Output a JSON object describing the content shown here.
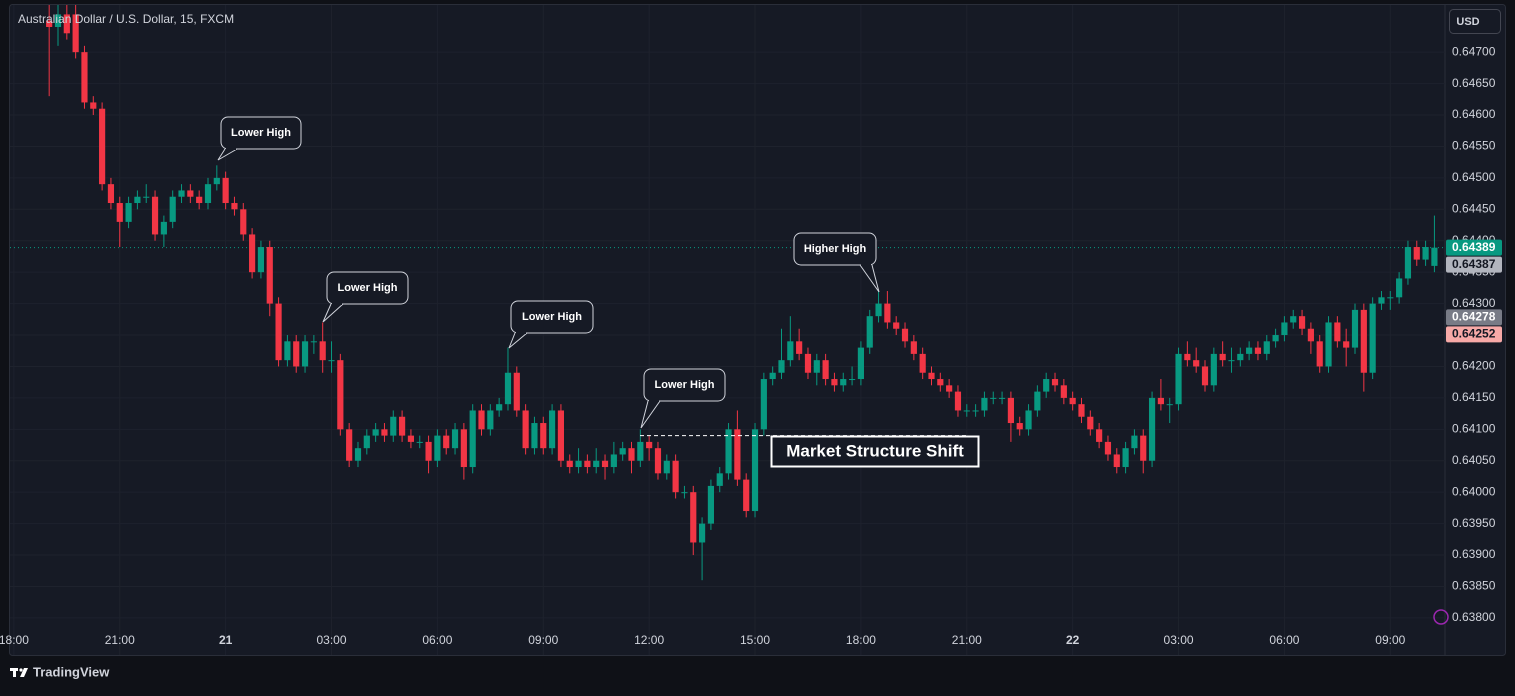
{
  "chart_data": {
    "type": "candlestick",
    "title": "Australian Dollar / U.S. Dollar, 15, FXCM",
    "currency_button": "USD",
    "branding": "TradingView",
    "up_color": "#089981",
    "down_color": "#f23645",
    "grid": true,
    "xlim": [
      -0.11,
      40.55
    ],
    "ylim": [
      0.63741,
      0.64775
    ],
    "xticks": [
      {
        "value": 0,
        "label": "18:00"
      },
      {
        "value": 3,
        "label": "21:00"
      },
      {
        "value": 6,
        "label": "21"
      },
      {
        "value": 9,
        "label": "03:00"
      },
      {
        "value": 12,
        "label": "06:00"
      },
      {
        "value": 15,
        "label": "09:00"
      },
      {
        "value": 18,
        "label": "12:00"
      },
      {
        "value": 21,
        "label": "15:00"
      },
      {
        "value": 24,
        "label": "18:00"
      },
      {
        "value": 27,
        "label": "21:00"
      },
      {
        "value": 30,
        "label": "22"
      },
      {
        "value": 33,
        "label": "03:00"
      },
      {
        "value": 36,
        "label": "06:00"
      },
      {
        "value": 39,
        "label": "09:00"
      }
    ],
    "yticks": [
      {
        "value": 0.638,
        "label": "0.63800"
      },
      {
        "value": 0.6385,
        "label": "0.63850"
      },
      {
        "value": 0.639,
        "label": "0.63900"
      },
      {
        "value": 0.6395,
        "label": "0.63950"
      },
      {
        "value": 0.64,
        "label": "0.64000"
      },
      {
        "value": 0.6405,
        "label": "0.64050"
      },
      {
        "value": 0.641,
        "label": "0.64100"
      },
      {
        "value": 0.6415,
        "label": "0.64150"
      },
      {
        "value": 0.642,
        "label": "0.64200"
      },
      {
        "value": 0.6425,
        "label": "0.64250"
      },
      {
        "value": 0.643,
        "label": "0.64300"
      },
      {
        "value": 0.6435,
        "label": "0.64350"
      },
      {
        "value": 0.644,
        "label": "0.64400"
      },
      {
        "value": 0.6445,
        "label": "0.64450"
      },
      {
        "value": 0.645,
        "label": "0.64500"
      },
      {
        "value": 0.6455,
        "label": "0.64550"
      },
      {
        "value": 0.646,
        "label": "0.64600"
      },
      {
        "value": 0.6465,
        "label": "0.64650"
      },
      {
        "value": 0.647,
        "label": "0.64700"
      }
    ],
    "price_labels": [
      {
        "value": 0.64389,
        "color": "#089981",
        "text_color": "#ffffff"
      },
      {
        "value": 0.64387,
        "color": "#b2b5be",
        "text_color": "#131722"
      },
      {
        "value": 0.64278,
        "color": "#787b86",
        "text_color": "#ffffff"
      },
      {
        "value": 0.64252,
        "color": "#f7a9a7",
        "text_color": "#131722"
      }
    ],
    "structure_level": 0.6409,
    "annotations": [
      "Lower High",
      "Lower High",
      "Lower High",
      "Lower High",
      "Higher High",
      "Market Structure Shift"
    ],
    "x": [
      1,
      1.25,
      1.5,
      1.75,
      2,
      2.25,
      2.5,
      2.75,
      3,
      3.25,
      3.5,
      3.75,
      4,
      4.25,
      4.5,
      4.75,
      5,
      5.25,
      5.5,
      5.75,
      6,
      6.25,
      6.5,
      6.75,
      7,
      7.25,
      7.5,
      7.75,
      8,
      8.25,
      8.5,
      8.75,
      9,
      9.25,
      9.5,
      9.75,
      10,
      10.25,
      10.5,
      10.75,
      11,
      11.25,
      11.5,
      11.75,
      12,
      12.25,
      12.5,
      12.75,
      13,
      13.25,
      13.5,
      13.75,
      14,
      14.25,
      14.5,
      14.75,
      15,
      15.25,
      15.5,
      15.75,
      16,
      16.25,
      16.5,
      16.75,
      17,
      17.25,
      17.5,
      17.75,
      18,
      18.25,
      18.5,
      18.75,
      19,
      19.25,
      19.5,
      19.75,
      20,
      20.25,
      20.5,
      20.75,
      21,
      21.25,
      21.5,
      21.75,
      22,
      22.25,
      22.5,
      22.75,
      23,
      23.25,
      23.5,
      23.75,
      24,
      24.25,
      24.5,
      24.75,
      25,
      25.25,
      25.5,
      25.75,
      26,
      26.25,
      26.5,
      26.75,
      27,
      27.25,
      27.5,
      27.75,
      28,
      28.25,
      28.5,
      28.75,
      29,
      29.25,
      29.5,
      29.75,
      30,
      30.25,
      30.5,
      30.75,
      31,
      31.25,
      31.5,
      31.75,
      32,
      32.25,
      32.5,
      32.75,
      33,
      33.25,
      33.5,
      33.75,
      34,
      34.25,
      34.5,
      34.75,
      35,
      35.25,
      35.5,
      35.75,
      36,
      36.25,
      36.5,
      36.75,
      37,
      37.25,
      37.5,
      37.75,
      38,
      38.25,
      38.5,
      38.75,
      39,
      39.25,
      39.5,
      39.75,
      40,
      40.25
    ],
    "candles": [
      [
        0.6475,
        0.6478,
        0.6463,
        0.6474
      ],
      [
        0.6474,
        0.6478,
        0.6471,
        0.6476
      ],
      [
        0.6476,
        0.6478,
        0.6472,
        0.6473
      ],
      [
        0.6476,
        0.6478,
        0.6469,
        0.647
      ],
      [
        0.647,
        0.6471,
        0.6461,
        0.6462
      ],
      [
        0.6462,
        0.6463,
        0.646,
        0.6461
      ],
      [
        0.6461,
        0.6462,
        0.6448,
        0.6449
      ],
      [
        0.6449,
        0.645,
        0.6445,
        0.6446
      ],
      [
        0.6446,
        0.6447,
        0.6439,
        0.6443
      ],
      [
        0.6443,
        0.6447,
        0.6442,
        0.6446
      ],
      [
        0.6446,
        0.6448,
        0.6445,
        0.6447
      ],
      [
        0.6447,
        0.6449,
        0.6446,
        0.6447
      ],
      [
        0.6447,
        0.6448,
        0.644,
        0.6441
      ],
      [
        0.6441,
        0.6444,
        0.6439,
        0.6443
      ],
      [
        0.6443,
        0.6448,
        0.6442,
        0.6447
      ],
      [
        0.6447,
        0.6449,
        0.6446,
        0.6448
      ],
      [
        0.6448,
        0.6449,
        0.6446,
        0.6447
      ],
      [
        0.6447,
        0.6448,
        0.6445,
        0.6446
      ],
      [
        0.6446,
        0.645,
        0.6445,
        0.6449
      ],
      [
        0.6449,
        0.6452,
        0.6448,
        0.645
      ],
      [
        0.645,
        0.6451,
        0.6445,
        0.6446
      ],
      [
        0.6446,
        0.6447,
        0.6444,
        0.6445
      ],
      [
        0.6445,
        0.6446,
        0.644,
        0.6441
      ],
      [
        0.6441,
        0.6442,
        0.6434,
        0.6435
      ],
      [
        0.6435,
        0.644,
        0.6434,
        0.6439
      ],
      [
        0.6439,
        0.644,
        0.6428,
        0.643
      ],
      [
        0.643,
        0.6431,
        0.642,
        0.6421
      ],
      [
        0.6421,
        0.6425,
        0.642,
        0.6424
      ],
      [
        0.6424,
        0.6425,
        0.6419,
        0.642
      ],
      [
        0.642,
        0.6425,
        0.6419,
        0.6424
      ],
      [
        0.6424,
        0.6425,
        0.6422,
        0.6424
      ],
      [
        0.6424,
        0.6427,
        0.6419,
        0.6421
      ],
      [
        0.6421,
        0.6424,
        0.6419,
        0.6421
      ],
      [
        0.6421,
        0.6422,
        0.6409,
        0.641
      ],
      [
        0.641,
        0.6411,
        0.6404,
        0.6405
      ],
      [
        0.6405,
        0.6408,
        0.6404,
        0.6407
      ],
      [
        0.6407,
        0.641,
        0.6406,
        0.6409
      ],
      [
        0.6409,
        0.6411,
        0.6408,
        0.641
      ],
      [
        0.641,
        0.6411,
        0.6408,
        0.6409
      ],
      [
        0.6409,
        0.6413,
        0.6408,
        0.6412
      ],
      [
        0.6412,
        0.6413,
        0.6408,
        0.6409
      ],
      [
        0.6409,
        0.641,
        0.6407,
        0.6408
      ],
      [
        0.6408,
        0.6409,
        0.6407,
        0.6408
      ],
      [
        0.6408,
        0.6409,
        0.6403,
        0.6405
      ],
      [
        0.6405,
        0.641,
        0.6404,
        0.6409
      ],
      [
        0.6409,
        0.641,
        0.6406,
        0.6407
      ],
      [
        0.6407,
        0.6411,
        0.6406,
        0.641
      ],
      [
        0.641,
        0.6411,
        0.6402,
        0.6404
      ],
      [
        0.6404,
        0.6414,
        0.6403,
        0.6413
      ],
      [
        0.6413,
        0.6414,
        0.6409,
        0.641
      ],
      [
        0.641,
        0.6414,
        0.6409,
        0.6413
      ],
      [
        0.6413,
        0.6415,
        0.6412,
        0.6414
      ],
      [
        0.6414,
        0.6423,
        0.6413,
        0.6419
      ],
      [
        0.6419,
        0.642,
        0.6412,
        0.6413
      ],
      [
        0.6413,
        0.6414,
        0.6406,
        0.6407
      ],
      [
        0.6407,
        0.6412,
        0.6406,
        0.6411
      ],
      [
        0.6411,
        0.6412,
        0.6406,
        0.6407
      ],
      [
        0.6407,
        0.6414,
        0.6406,
        0.6413
      ],
      [
        0.6413,
        0.6414,
        0.6404,
        0.6405
      ],
      [
        0.6405,
        0.6406,
        0.6403,
        0.6404
      ],
      [
        0.6404,
        0.6407,
        0.6403,
        0.6405
      ],
      [
        0.6405,
        0.6406,
        0.6403,
        0.6404
      ],
      [
        0.6404,
        0.6407,
        0.6403,
        0.6405
      ],
      [
        0.6405,
        0.6406,
        0.6402,
        0.6404
      ],
      [
        0.6404,
        0.6408,
        0.6403,
        0.6406
      ],
      [
        0.6406,
        0.6408,
        0.6405,
        0.6407
      ],
      [
        0.6407,
        0.6408,
        0.6403,
        0.6405
      ],
      [
        0.6405,
        0.641,
        0.6404,
        0.6408
      ],
      [
        0.6408,
        0.6409,
        0.6405,
        0.6407
      ],
      [
        0.6407,
        0.6408,
        0.6402,
        0.6403
      ],
      [
        0.6403,
        0.6406,
        0.6402,
        0.6405
      ],
      [
        0.6405,
        0.6406,
        0.6399,
        0.64
      ],
      [
        0.64,
        0.6401,
        0.6399,
        0.64
      ],
      [
        0.64,
        0.6401,
        0.639,
        0.6392
      ],
      [
        0.6392,
        0.6396,
        0.6386,
        0.6395
      ],
      [
        0.6395,
        0.6402,
        0.6394,
        0.6401
      ],
      [
        0.6401,
        0.6404,
        0.64,
        0.6403
      ],
      [
        0.6403,
        0.6411,
        0.6402,
        0.641
      ],
      [
        0.641,
        0.6413,
        0.6401,
        0.6402
      ],
      [
        0.6402,
        0.6403,
        0.6396,
        0.6397
      ],
      [
        0.6397,
        0.6411,
        0.6396,
        0.641
      ],
      [
        0.641,
        0.6419,
        0.6409,
        0.6418
      ],
      [
        0.6418,
        0.642,
        0.6417,
        0.6419
      ],
      [
        0.6419,
        0.6426,
        0.6418,
        0.6421
      ],
      [
        0.6421,
        0.6428,
        0.642,
        0.6424
      ],
      [
        0.6424,
        0.6426,
        0.6421,
        0.6422
      ],
      [
        0.6422,
        0.6423,
        0.6418,
        0.6419
      ],
      [
        0.6419,
        0.6422,
        0.6417,
        0.6421
      ],
      [
        0.6421,
        0.6422,
        0.6417,
        0.6418
      ],
      [
        0.6418,
        0.6419,
        0.6416,
        0.6417
      ],
      [
        0.6417,
        0.6419,
        0.6416,
        0.6418
      ],
      [
        0.6418,
        0.642,
        0.6417,
        0.6418
      ],
      [
        0.6418,
        0.6424,
        0.6417,
        0.6423
      ],
      [
        0.6423,
        0.6429,
        0.6422,
        0.6428
      ],
      [
        0.6428,
        0.6432,
        0.6427,
        0.643
      ],
      [
        0.643,
        0.6432,
        0.6426,
        0.6427
      ],
      [
        0.6427,
        0.6428,
        0.6425,
        0.6426
      ],
      [
        0.6426,
        0.6427,
        0.6423,
        0.6424
      ],
      [
        0.6424,
        0.6425,
        0.6421,
        0.6422
      ],
      [
        0.6422,
        0.6423,
        0.6418,
        0.6419
      ],
      [
        0.6419,
        0.642,
        0.6417,
        0.6418
      ],
      [
        0.6418,
        0.6419,
        0.6416,
        0.6417
      ],
      [
        0.6417,
        0.6418,
        0.6415,
        0.6416
      ],
      [
        0.6416,
        0.6417,
        0.6412,
        0.6413
      ],
      [
        0.6413,
        0.6414,
        0.6412,
        0.6413
      ],
      [
        0.6413,
        0.6414,
        0.6412,
        0.6413
      ],
      [
        0.6413,
        0.6416,
        0.6412,
        0.6415
      ],
      [
        0.6415,
        0.6416,
        0.6414,
        0.6415
      ],
      [
        0.6415,
        0.6416,
        0.6414,
        0.6415
      ],
      [
        0.6415,
        0.6416,
        0.6408,
        0.6411
      ],
      [
        0.6411,
        0.6412,
        0.6409,
        0.641
      ],
      [
        0.641,
        0.6414,
        0.6409,
        0.6413
      ],
      [
        0.6413,
        0.6417,
        0.6412,
        0.6416
      ],
      [
        0.6416,
        0.6419,
        0.6415,
        0.6418
      ],
      [
        0.6418,
        0.6419,
        0.6416,
        0.6417
      ],
      [
        0.6417,
        0.6418,
        0.6414,
        0.6415
      ],
      [
        0.6415,
        0.6416,
        0.6413,
        0.6414
      ],
      [
        0.6414,
        0.6415,
        0.6411,
        0.6412
      ],
      [
        0.6412,
        0.6413,
        0.6409,
        0.641
      ],
      [
        0.641,
        0.6411,
        0.6407,
        0.6408
      ],
      [
        0.6408,
        0.6409,
        0.6405,
        0.6406
      ],
      [
        0.6406,
        0.6407,
        0.6403,
        0.6404
      ],
      [
        0.6404,
        0.6408,
        0.6403,
        0.6407
      ],
      [
        0.6407,
        0.641,
        0.6406,
        0.6409
      ],
      [
        0.6409,
        0.641,
        0.6403,
        0.6405
      ],
      [
        0.6405,
        0.6416,
        0.6404,
        0.6415
      ],
      [
        0.6415,
        0.6418,
        0.6413,
        0.6414
      ],
      [
        0.6414,
        0.6415,
        0.6411,
        0.6414
      ],
      [
        0.6414,
        0.6423,
        0.6413,
        0.6422
      ],
      [
        0.6422,
        0.6424,
        0.642,
        0.6421
      ],
      [
        0.6421,
        0.6423,
        0.6419,
        0.642
      ],
      [
        0.642,
        0.6421,
        0.6416,
        0.6417
      ],
      [
        0.6417,
        0.6423,
        0.6416,
        0.6422
      ],
      [
        0.6422,
        0.6424,
        0.642,
        0.6421
      ],
      [
        0.6421,
        0.6423,
        0.6419,
        0.6421
      ],
      [
        0.6421,
        0.6423,
        0.642,
        0.6422
      ],
      [
        0.6422,
        0.6424,
        0.6421,
        0.6423
      ],
      [
        0.6423,
        0.6424,
        0.6421,
        0.6422
      ],
      [
        0.6422,
        0.6425,
        0.6421,
        0.6424
      ],
      [
        0.6424,
        0.6426,
        0.6423,
        0.6425
      ],
      [
        0.6425,
        0.6428,
        0.6424,
        0.6427
      ],
      [
        0.6427,
        0.6429,
        0.6426,
        0.6428
      ],
      [
        0.6428,
        0.6429,
        0.6425,
        0.6426
      ],
      [
        0.6426,
        0.6427,
        0.6422,
        0.6424
      ],
      [
        0.6424,
        0.6425,
        0.6419,
        0.642
      ],
      [
        0.642,
        0.6428,
        0.6419,
        0.6427
      ],
      [
        0.6427,
        0.6428,
        0.6423,
        0.6424
      ],
      [
        0.6424,
        0.6426,
        0.642,
        0.6423
      ],
      [
        0.6423,
        0.643,
        0.6422,
        0.6429
      ],
      [
        0.6429,
        0.643,
        0.6416,
        0.6419
      ],
      [
        0.6419,
        0.6431,
        0.6418,
        0.643
      ],
      [
        0.643,
        0.6432,
        0.6429,
        0.6431
      ],
      [
        0.6431,
        0.6432,
        0.6429,
        0.6431
      ],
      [
        0.6431,
        0.6435,
        0.643,
        0.6434
      ],
      [
        0.6434,
        0.644,
        0.6433,
        0.6439
      ],
      [
        0.6439,
        0.644,
        0.6436,
        0.6437
      ],
      [
        0.6437,
        0.644,
        0.6436,
        0.6439
      ],
      [
        0.6436,
        0.6444,
        0.6435,
        0.64389
      ]
    ]
  }
}
